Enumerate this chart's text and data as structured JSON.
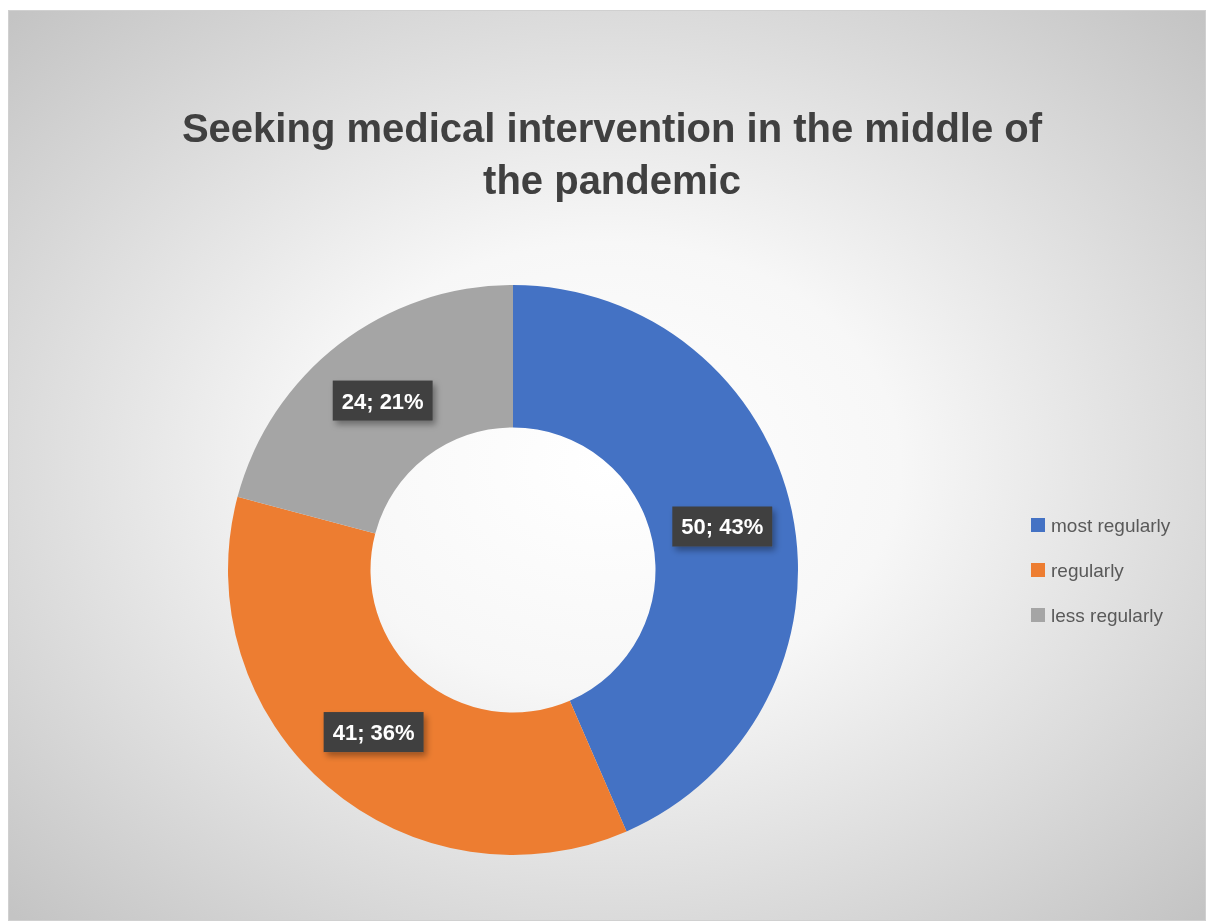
{
  "chart_data": {
    "type": "donut",
    "title": "Seeking medical intervention in the middle of the pandemic",
    "categories": [
      "most regularly",
      "regularly",
      "less regularly"
    ],
    "values": [
      50,
      41,
      24
    ],
    "colors": [
      "#4472c4",
      "#ed7d31",
      "#a5a5a5"
    ],
    "value_labels": [
      "50; 43%",
      "41; 36%",
      "24; 21%"
    ],
    "legend": "right"
  }
}
